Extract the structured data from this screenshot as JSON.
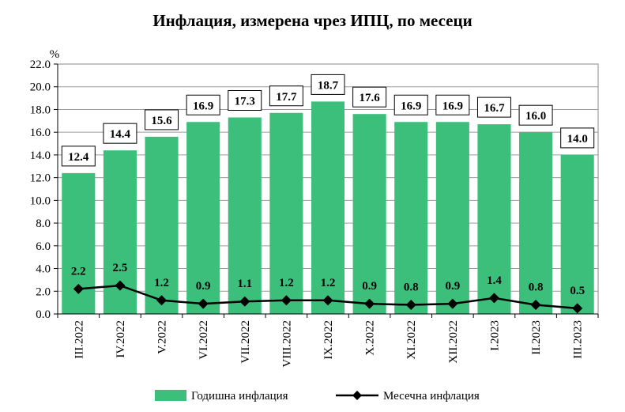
{
  "chart_data": {
    "type": "bar",
    "title": "Инфлация, измерена чрез ИПЦ, по месеци",
    "ylabel": "%",
    "ylim": [
      0,
      22
    ],
    "yticks": [
      "0.0",
      "2.0",
      "4.0",
      "6.0",
      "8.0",
      "10.0",
      "12.0",
      "14.0",
      "16.0",
      "18.0",
      "20.0",
      "22.0"
    ],
    "categories": [
      "III.2022",
      "IV.2022",
      "V.2022",
      "VI.2022",
      "VII.2022",
      "VIII.2022",
      "IX.2022",
      "X.2022",
      "XI.2022",
      "XII.2022",
      "I.2023",
      "II.2023",
      "III.2023"
    ],
    "series": [
      {
        "name": "Годишна инфлация",
        "type": "bar",
        "color": "#3dbf7c",
        "values": [
          12.4,
          14.4,
          15.6,
          16.9,
          17.3,
          17.7,
          18.7,
          17.6,
          16.9,
          16.9,
          16.7,
          16.0,
          14.0
        ],
        "labels": [
          "12.4",
          "14.4",
          "15.6",
          "16.9",
          "17.3",
          "17.7",
          "18.7",
          "17.6",
          "16.9",
          "16.9",
          "16.7",
          "16.0",
          "14.0"
        ]
      },
      {
        "name": "Месечна инфлация",
        "type": "line",
        "color": "#000000",
        "values": [
          2.2,
          2.5,
          1.2,
          0.9,
          1.1,
          1.2,
          1.2,
          0.9,
          0.8,
          0.9,
          1.4,
          0.8,
          0.5
        ],
        "labels": [
          "2.2",
          "2.5",
          "1.2",
          "0.9",
          "1.1",
          "1.2",
          "1.2",
          "0.9",
          "0.8",
          "0.9",
          "1.4",
          "0.8",
          "0.5"
        ]
      }
    ],
    "grid": true,
    "legend": "bottom"
  }
}
